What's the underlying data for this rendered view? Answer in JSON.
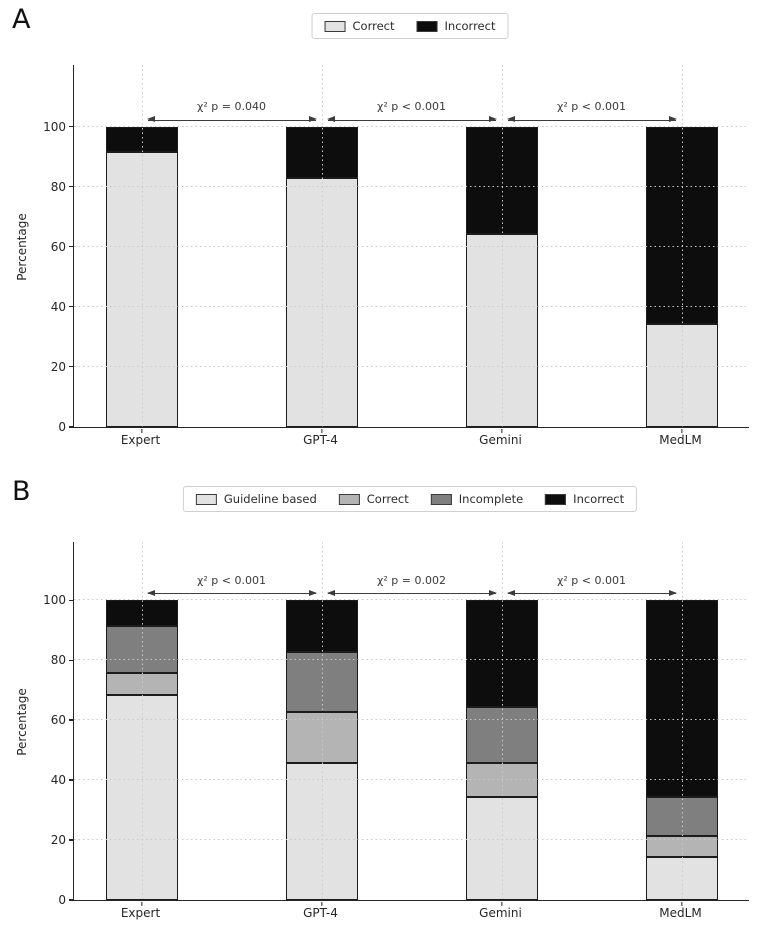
{
  "figure": {
    "background": "#ffffff"
  },
  "chart_data": [
    {
      "type": "bar",
      "stacked": true,
      "panel_label": "A",
      "ylabel": "Percentage",
      "xlabel": "",
      "categories": [
        "Expert",
        "GPT-4",
        "Gemini",
        "MedLM"
      ],
      "yticks": [
        0,
        20,
        40,
        60,
        80,
        100
      ],
      "ylim": [
        0,
        120.5
      ],
      "grid": "dotted",
      "legend_position": "top-center",
      "series": [
        {
          "name": "Correct",
          "color": "#e2e2e2",
          "values": [
            91.4,
            82.9,
            64.3,
            34.3
          ]
        },
        {
          "name": "Incorrect",
          "color": "#0d0d0d",
          "values": [
            8.6,
            17.1,
            35.7,
            65.7
          ]
        }
      ],
      "annotations": [
        {
          "between": [
            "Expert",
            "GPT-4"
          ],
          "text": "χ² p = 0.040"
        },
        {
          "between": [
            "GPT-4",
            "Gemini"
          ],
          "text": "χ² p < 0.001"
        },
        {
          "between": [
            "Gemini",
            "MedLM"
          ],
          "text": "χ² p < 0.001"
        }
      ]
    },
    {
      "type": "bar",
      "stacked": true,
      "panel_label": "B",
      "ylabel": "Percentage",
      "xlabel": "",
      "categories": [
        "Expert",
        "GPT-4",
        "Gemini",
        "MedLM"
      ],
      "yticks": [
        0,
        20,
        40,
        60,
        80,
        100
      ],
      "ylim": [
        0,
        119.5
      ],
      "grid": "dotted",
      "legend_position": "top-center",
      "series": [
        {
          "name": "Guideline based",
          "color": "#e2e2e2",
          "values": [
            68.6,
            45.7,
            34.3,
            14.3
          ]
        },
        {
          "name": "Correct",
          "color": "#b4b4b4",
          "values": [
            7.1,
            17.2,
            11.4,
            7.1
          ]
        },
        {
          "name": "Incomplete",
          "color": "#7f7f7f",
          "values": [
            15.7,
            20.0,
            18.6,
            12.9
          ]
        },
        {
          "name": "Incorrect",
          "color": "#0d0d0d",
          "values": [
            8.6,
            17.1,
            35.7,
            65.7
          ]
        }
      ],
      "annotations": [
        {
          "between": [
            "Expert",
            "GPT-4"
          ],
          "text": "χ² p < 0.001"
        },
        {
          "between": [
            "GPT-4",
            "Gemini"
          ],
          "text": "χ² p = 0.002"
        },
        {
          "between": [
            "Gemini",
            "MedLM"
          ],
          "text": "χ² p < 0.001"
        }
      ]
    }
  ]
}
